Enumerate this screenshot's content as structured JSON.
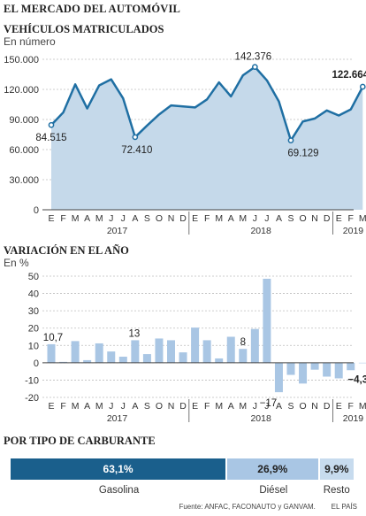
{
  "header": {
    "title": "EL MERCADO DEL AUTOMÓVIL"
  },
  "colors": {
    "line": "#1f6fa3",
    "area": "#c5d9ea",
    "bar": "#a9c6e4",
    "dark_blue": "#1a5f8c",
    "mid_blue": "#a9c6e4",
    "light_blue": "#c7dbee"
  },
  "chart_data": [
    {
      "type": "area",
      "title": "VEHÍCULOS MATRICULADOS",
      "ylabel": "En número",
      "ylim": [
        0,
        150000
      ],
      "yticks": [
        "0",
        "30.000",
        "60.000",
        "90.000",
        "120.000",
        "150.000"
      ],
      "categories": [
        "E",
        "F",
        "M",
        "A",
        "M",
        "J",
        "J",
        "A",
        "S",
        "O",
        "N",
        "D",
        "E",
        "F",
        "M",
        "A",
        "M",
        "J",
        "J",
        "A",
        "S",
        "O",
        "N",
        "D",
        "E",
        "F",
        "M"
      ],
      "years": [
        "2017",
        "2018",
        "2019"
      ],
      "values": [
        84515,
        97000,
        125000,
        101000,
        124000,
        130000,
        111000,
        72410,
        84000,
        95000,
        104000,
        103000,
        102000,
        110000,
        127000,
        113000,
        134000,
        142376,
        129000,
        108000,
        69129,
        88000,
        91000,
        99000,
        94000,
        100000,
        122664
      ],
      "annotations": [
        "84.515",
        "72.410",
        "142.376",
        "69.129",
        "122.664"
      ]
    },
    {
      "type": "bar",
      "title": "VARIACIÓN EN EL AÑO",
      "ylabel": "En %",
      "ylim": [
        -20,
        50
      ],
      "yticks": [
        "-20",
        "-10",
        "0",
        "10",
        "20",
        "30",
        "40",
        "50"
      ],
      "categories": [
        "E",
        "F",
        "M",
        "A",
        "M",
        "J",
        "J",
        "A",
        "S",
        "O",
        "N",
        "D",
        "E",
        "F",
        "M",
        "A",
        "M",
        "J",
        "J",
        "A",
        "S",
        "O",
        "N",
        "D",
        "E",
        "F",
        "M"
      ],
      "years": [
        "2017",
        "2018",
        "2019"
      ],
      "values": [
        10.7,
        0.5,
        12.5,
        1.5,
        11.2,
        6.5,
        3.5,
        13.0,
        5.0,
        14.0,
        13.0,
        6.0,
        20.3,
        13.0,
        2.5,
        15.0,
        8.0,
        19.5,
        48.5,
        -17.0,
        -7.0,
        -12.0,
        -4.0,
        -8.0,
        -9.0,
        -4.3,
        0.0
      ],
      "annotations": [
        "10,7",
        "13",
        "8",
        "−17",
        "−4,3"
      ]
    },
    {
      "type": "bar",
      "title": "POR TIPO DE CARBURANTE",
      "categories": [
        "Gasolina",
        "Diésel",
        "Resto"
      ],
      "values": [
        63.1,
        26.9,
        9.9
      ],
      "value_labels": [
        "63,1%",
        "26,9%",
        "9,9%"
      ]
    }
  ],
  "footer": {
    "source": "Fuente: ANFAC, FACONAUTO y GANVAM.",
    "brand": "EL PAÍS"
  }
}
